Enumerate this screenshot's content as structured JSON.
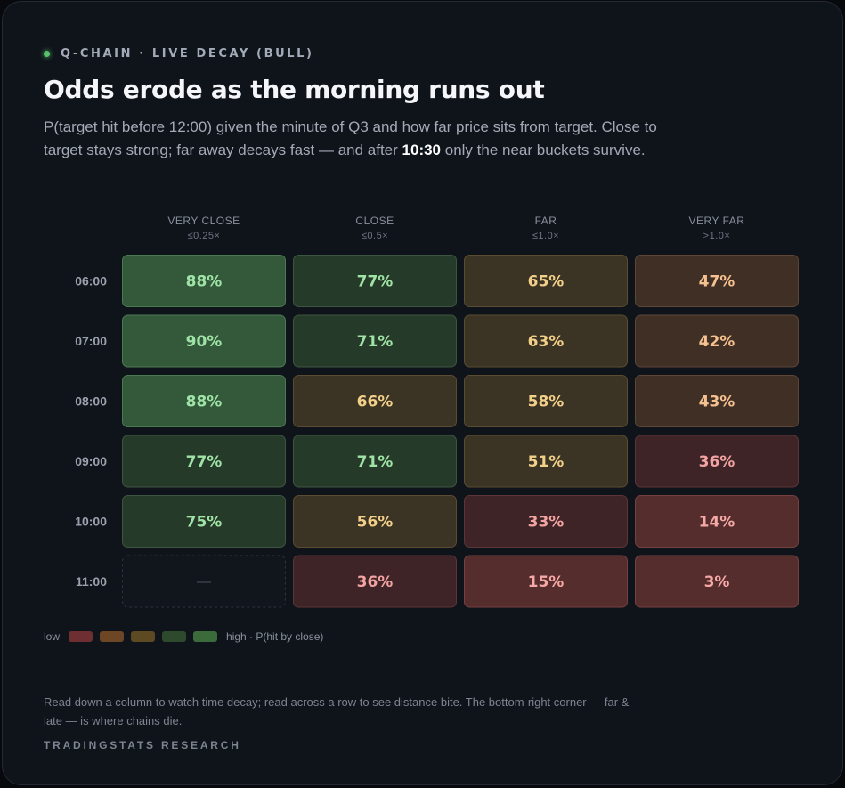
{
  "header": {
    "eyebrow": "Q-CHAIN · LIVE DECAY (BULL)",
    "title": "Odds erode as the morning runs out",
    "subtitle_before": "P(target hit before 12:00) given the minute of Q3 and how far price sits from target. Close to target stays strong; far away decays fast — and after ",
    "subtitle_bold": "10:30",
    "subtitle_after": " only the near buckets survive."
  },
  "chart_data": {
    "type": "heatmap",
    "columns": [
      {
        "name": "VERY CLOSE",
        "range": "≤0.25×"
      },
      {
        "name": "CLOSE",
        "range": "≤0.5×"
      },
      {
        "name": "FAR",
        "range": "≤1.0×"
      },
      {
        "name": "VERY FAR",
        "range": ">1.0×"
      }
    ],
    "rows": [
      "06:00",
      "07:00",
      "08:00",
      "09:00",
      "10:00",
      "11:00"
    ],
    "values": [
      [
        88,
        77,
        65,
        47
      ],
      [
        90,
        71,
        63,
        42
      ],
      [
        88,
        66,
        58,
        43
      ],
      [
        77,
        71,
        51,
        36
      ],
      [
        75,
        56,
        33,
        14
      ],
      [
        null,
        36,
        15,
        3
      ]
    ],
    "value_suffix": "%",
    "missing_label": "—",
    "color_scale": [
      "#7a2f35",
      "#6e4528",
      "#5e4a24",
      "#2f4a2c",
      "#3a6a3a"
    ]
  },
  "legend": {
    "low_label": "low",
    "high_label": "high · P(hit by close)",
    "swatches": [
      "#6e2f33",
      "#6d4626",
      "#5e4a22",
      "#2e4a2c",
      "#3b6a3b"
    ]
  },
  "footer": {
    "note": "Read down a column to watch time decay; read across a row to see distance bite. The bottom-right corner — far & late — is where chains die.",
    "brand": "TRADINGSTATS RESEARCH"
  }
}
